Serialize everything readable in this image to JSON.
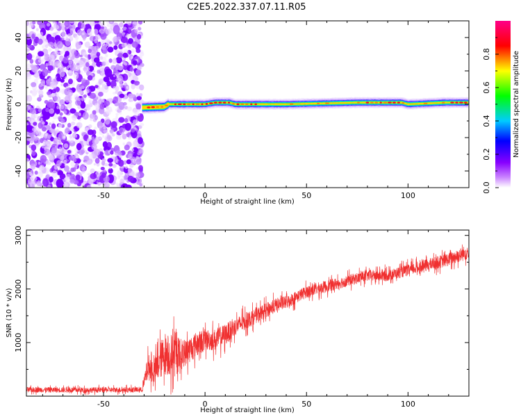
{
  "title": "C2E5.2022.337.07.11.R05",
  "chart_data": [
    {
      "type": "heatmap",
      "name": "spectrogram",
      "xlabel": "Height of straight line (km)",
      "ylabel": "Frequency (Hz)",
      "xlim": [
        -88,
        130
      ],
      "ylim": [
        -50,
        50
      ],
      "xticks": [
        -50,
        0,
        50,
        100
      ],
      "yticks": [
        -40,
        -20,
        0,
        20,
        40
      ],
      "noise_region_x": [
        -88,
        -31
      ],
      "signal_band": {
        "x_start": -31,
        "x_end": 130,
        "center_freq_hz": [
          {
            "x": -31,
            "f": -2
          },
          {
            "x": -20,
            "f": -1.5
          },
          {
            "x": -18,
            "f": 0
          },
          {
            "x": 0,
            "f": 0
          },
          {
            "x": 5,
            "f": 1
          },
          {
            "x": 12,
            "f": 1
          },
          {
            "x": 15,
            "f": 0
          },
          {
            "x": 40,
            "f": 0
          },
          {
            "x": 75,
            "f": 1
          },
          {
            "x": 97,
            "f": 1
          },
          {
            "x": 100,
            "f": 0
          },
          {
            "x": 118,
            "f": 1
          },
          {
            "x": 130,
            "f": 1
          }
        ]
      },
      "colorbar": {
        "label": "Normalized spectral amplitude",
        "ticks": [
          0.0,
          0.2,
          0.4,
          0.6,
          0.8
        ],
        "tick_labels": [
          "0.0",
          "0.2",
          "0.4",
          "0.6",
          "0.8"
        ],
        "range": [
          0,
          1
        ],
        "colors": [
          "#ffffff",
          "#8800ff",
          "#0000ff",
          "#00ccff",
          "#00ff00",
          "#ffff00",
          "#ff0000",
          "#ff0088"
        ]
      }
    },
    {
      "type": "line",
      "name": "snr",
      "xlabel": "Height of straight line (km)",
      "ylabel": "SNR (10 * v/v)",
      "xlim": [
        -88,
        130
      ],
      "ylim": [
        0,
        3100
      ],
      "xticks": [
        -50,
        0,
        50,
        100
      ],
      "yticks": [
        1000,
        2000,
        3000
      ],
      "color": "#f03030",
      "series": [
        {
          "x": [
            -88,
            -60,
            -31,
            -28,
            -25,
            -20,
            -15,
            -10,
            -5,
            0,
            5,
            10,
            15,
            20,
            25,
            30,
            35,
            40,
            50,
            60,
            70,
            80,
            90,
            100,
            110,
            120,
            130
          ],
          "y": [
            120,
            115,
            120,
            550,
            450,
            800,
            750,
            800,
            950,
            1050,
            1050,
            1150,
            1300,
            1400,
            1500,
            1600,
            1700,
            1750,
            1950,
            2050,
            2150,
            2250,
            2250,
            2350,
            2450,
            2550,
            2700
          ],
          "spread": [
            60,
            60,
            60,
            300,
            300,
            500,
            500,
            300,
            300,
            250,
            250,
            250,
            200,
            200,
            170,
            170,
            160,
            150,
            140,
            140,
            130,
            130,
            130,
            130,
            140,
            150,
            170
          ]
        }
      ]
    }
  ]
}
